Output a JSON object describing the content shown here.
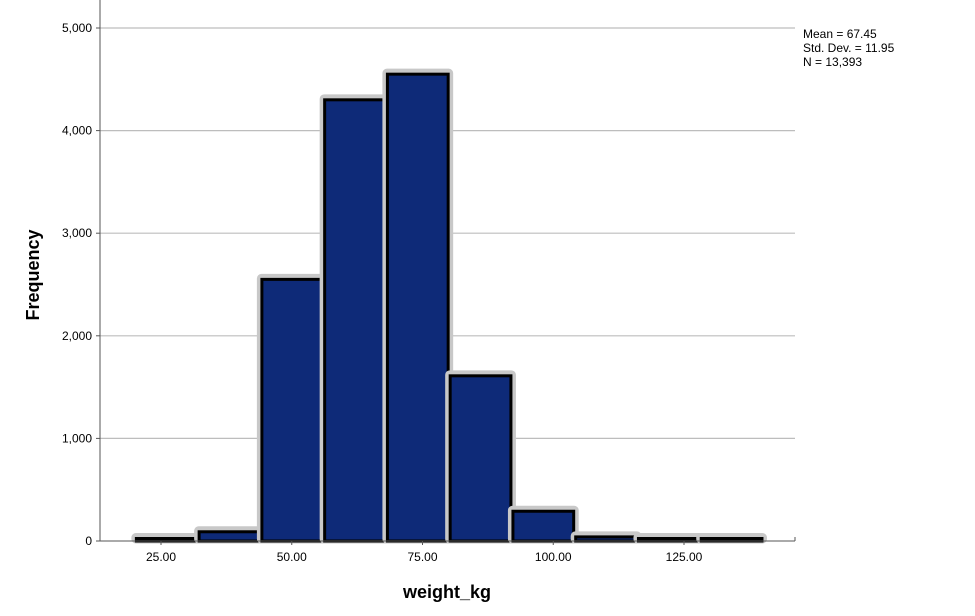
{
  "chart_data": {
    "type": "bar",
    "subtype": "histogram",
    "xlabel": "weight_kg",
    "ylabel": "Frequency",
    "xlim": [
      15,
      145
    ],
    "ylim": [
      0,
      5200
    ],
    "grid": true,
    "bar_color": "#0e2a78",
    "bar_edge_color": "#000000",
    "bar_halo_color": "#c8c8c8",
    "grid_color": "#bdbdbd",
    "bins": [
      {
        "start": 20.1,
        "end": 32.1,
        "value": 15
      },
      {
        "start": 32.1,
        "end": 44.1,
        "value": 90
      },
      {
        "start": 44.1,
        "end": 56.1,
        "value": 2550
      },
      {
        "start": 56.1,
        "end": 68.1,
        "value": 4300
      },
      {
        "start": 68.1,
        "end": 80.1,
        "value": 4550
      },
      {
        "start": 80.1,
        "end": 92.1,
        "value": 1610
      },
      {
        "start": 92.1,
        "end": 104.1,
        "value": 290
      },
      {
        "start": 104.1,
        "end": 116.1,
        "value": 40
      },
      {
        "start": 116.1,
        "end": 128.1,
        "value": 15
      },
      {
        "start": 128.1,
        "end": 140.1,
        "value": 10
      }
    ],
    "x_ticks": [
      {
        "value": 25,
        "label": "25.00"
      },
      {
        "value": 50,
        "label": "50.00"
      },
      {
        "value": 75,
        "label": "75.00"
      },
      {
        "value": 100,
        "label": "100.00"
      },
      {
        "value": 125,
        "label": "125.00"
      }
    ],
    "y_ticks": [
      {
        "value": 0,
        "label": "0"
      },
      {
        "value": 1000,
        "label": "1,000"
      },
      {
        "value": 2000,
        "label": "2,000"
      },
      {
        "value": 3000,
        "label": "3,000"
      },
      {
        "value": 4000,
        "label": "4,000"
      },
      {
        "value": 5000,
        "label": "5,000"
      }
    ],
    "stats": {
      "mean": "Mean = 67.45",
      "std_dev": "Std. Dev. = 11.95",
      "n": "N = 13,393"
    }
  }
}
